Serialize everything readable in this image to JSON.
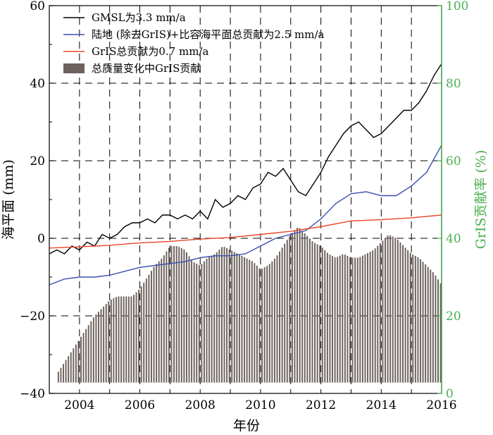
{
  "chart_data": {
    "type": "line",
    "title": "",
    "xlabel": "年份",
    "ylabel": "海平面 (mm)",
    "y2label": "GrIS贡献率 (%)",
    "xlim": [
      2003,
      2016
    ],
    "ylim": [
      -40,
      60
    ],
    "y2lim": [
      0,
      100
    ],
    "x_ticks": [
      "2004",
      "2006",
      "2008",
      "2010",
      "2012",
      "2014",
      "2016"
    ],
    "y_ticks": [
      "−40",
      "−20",
      "0",
      "20",
      "40",
      "60"
    ],
    "y2_ticks": [
      "0",
      "20",
      "40",
      "60",
      "80",
      "100"
    ],
    "grid": true,
    "legend_position": "top-left",
    "colors": {
      "gmsl": "#000000",
      "land": "#3b4fae",
      "gris": "#e8462a",
      "bars": "#6d625e",
      "right_axis": "#4caf50"
    },
    "series": [
      {
        "name": "GMSL为3.3 mm/a",
        "type": "line",
        "axis": "left",
        "x": [
          2003.0,
          2003.25,
          2003.5,
          2003.75,
          2004.0,
          2004.25,
          2004.5,
          2004.75,
          2005.0,
          2005.25,
          2005.5,
          2005.75,
          2006.0,
          2006.25,
          2006.5,
          2006.75,
          2007.0,
          2007.25,
          2007.5,
          2007.75,
          2008.0,
          2008.25,
          2008.5,
          2008.75,
          2009.0,
          2009.25,
          2009.5,
          2009.75,
          2010.0,
          2010.25,
          2010.5,
          2010.75,
          2011.0,
          2011.25,
          2011.5,
          2011.75,
          2012.0,
          2012.25,
          2012.5,
          2012.75,
          2013.0,
          2013.25,
          2013.5,
          2013.75,
          2014.0,
          2014.25,
          2014.5,
          2014.75,
          2015.0,
          2015.25,
          2015.5,
          2015.75,
          2016.0
        ],
        "values": [
          -4,
          -3,
          -4,
          -2,
          -3,
          -1,
          -2,
          1,
          0,
          1,
          3,
          4,
          4,
          5,
          4,
          6,
          6,
          5,
          6,
          5,
          7,
          5,
          10,
          8,
          9,
          11,
          10,
          13,
          14,
          17,
          16,
          18,
          15,
          12,
          11,
          14,
          17,
          21,
          24,
          27,
          29,
          30,
          28,
          26,
          27,
          29,
          31,
          33,
          33,
          35,
          38,
          42,
          45
        ]
      },
      {
        "name": "陆地 (除去GrIS)+比容海平面总贡献为2.5 mm/a",
        "type": "line",
        "axis": "left",
        "x": [
          2003.0,
          2003.5,
          2004.0,
          2004.5,
          2005.0,
          2005.5,
          2006.0,
          2006.5,
          2007.0,
          2007.5,
          2008.0,
          2008.5,
          2009.0,
          2009.5,
          2010.0,
          2010.5,
          2011.0,
          2011.5,
          2012.0,
          2012.5,
          2013.0,
          2013.5,
          2014.0,
          2014.5,
          2015.0,
          2015.5,
          2016.0
        ],
        "values": [
          -12,
          -10.5,
          -10,
          -10,
          -9.5,
          -8.5,
          -7.5,
          -7,
          -6.5,
          -6,
          -5,
          -4.5,
          -4.5,
          -4,
          -2,
          0,
          1,
          2,
          5,
          9,
          11.5,
          12,
          11,
          11,
          13.5,
          17,
          24
        ]
      },
      {
        "name": "GrIS总贡献为0.7 mm/a",
        "type": "line",
        "axis": "left",
        "x": [
          2003.0,
          2004.0,
          2005.0,
          2006.0,
          2007.0,
          2008.0,
          2009.0,
          2010.0,
          2011.0,
          2012.0,
          2013.0,
          2014.0,
          2015.0,
          2016.0
        ],
        "values": [
          -2.5,
          -2.2,
          -1.8,
          -1.2,
          -0.8,
          -0.2,
          0.2,
          1.0,
          1.8,
          3.0,
          4.5,
          4.8,
          5.3,
          6.0
        ]
      },
      {
        "name": "总质量变化中GrIS贡献",
        "type": "bar",
        "axis": "right",
        "x": [
          2003.0,
          2003.25,
          2003.5,
          2003.75,
          2004.0,
          2004.25,
          2004.5,
          2004.75,
          2005.0,
          2005.25,
          2005.5,
          2005.75,
          2006.0,
          2006.25,
          2006.5,
          2006.75,
          2007.0,
          2007.25,
          2007.5,
          2007.75,
          2008.0,
          2008.25,
          2008.5,
          2008.75,
          2009.0,
          2009.25,
          2009.5,
          2009.75,
          2010.0,
          2010.25,
          2010.5,
          2010.75,
          2011.0,
          2011.25,
          2011.5,
          2011.75,
          2012.0,
          2012.25,
          2012.5,
          2012.75,
          2013.0,
          2013.25,
          2013.5,
          2013.75,
          2014.0,
          2014.25,
          2014.5,
          2014.75,
          2015.0,
          2015.25,
          2015.5,
          2015.75,
          2016.0
        ],
        "values": [
          3,
          5,
          8,
          11,
          14,
          17,
          20,
          22,
          24,
          25,
          25,
          25,
          27,
          30,
          33,
          35,
          38,
          38,
          37,
          34,
          33,
          35,
          36,
          38,
          37,
          36,
          35,
          34,
          32,
          33,
          35,
          38,
          41,
          43,
          41,
          39,
          38,
          36,
          35,
          36,
          35,
          35,
          36,
          37,
          39,
          41,
          40,
          38,
          36,
          35,
          33,
          31,
          28
        ]
      }
    ]
  }
}
